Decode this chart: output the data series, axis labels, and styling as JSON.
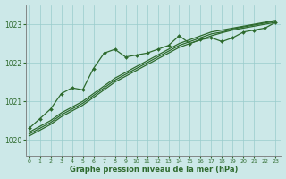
{
  "title": "Graphe pression niveau de la mer (hPa)",
  "bg_color": "#cce8e8",
  "grid_color": "#99cccc",
  "line_color": "#2d6a2d",
  "x_ticks": [
    0,
    1,
    2,
    3,
    4,
    5,
    6,
    7,
    8,
    9,
    10,
    11,
    12,
    13,
    14,
    15,
    16,
    17,
    18,
    19,
    20,
    21,
    22,
    23
  ],
  "y_ticks": [
    1020,
    1021,
    1022,
    1023
  ],
  "ylim": [
    1019.6,
    1023.5
  ],
  "xlim": [
    -0.3,
    23.5
  ],
  "line_marker": [
    1020.3,
    1020.55,
    1020.8,
    1021.2,
    1021.35,
    1021.3,
    1021.85,
    1022.25,
    1022.35,
    1022.15,
    1022.2,
    1022.25,
    1022.35,
    1022.45,
    1022.7,
    1022.5,
    1022.6,
    1022.65,
    1022.55,
    1022.65,
    1022.8,
    1022.85,
    1022.9,
    1023.05
  ],
  "line_smooth1": [
    1020.2,
    1020.35,
    1020.5,
    1020.7,
    1020.85,
    1021.0,
    1021.2,
    1021.4,
    1021.6,
    1021.75,
    1021.9,
    1022.05,
    1022.2,
    1022.35,
    1022.5,
    1022.6,
    1022.7,
    1022.8,
    1022.85,
    1022.9,
    1022.95,
    1023.0,
    1023.05,
    1023.1
  ],
  "line_smooth2": [
    1020.15,
    1020.3,
    1020.45,
    1020.65,
    1020.8,
    1020.95,
    1021.15,
    1021.35,
    1021.55,
    1021.7,
    1021.85,
    1022.0,
    1022.15,
    1022.3,
    1022.45,
    1022.55,
    1022.65,
    1022.75,
    1022.8,
    1022.88,
    1022.93,
    1022.98,
    1023.03,
    1023.08
  ],
  "line_smooth3": [
    1020.1,
    1020.25,
    1020.4,
    1020.6,
    1020.75,
    1020.9,
    1021.1,
    1021.3,
    1021.5,
    1021.65,
    1021.8,
    1021.95,
    1022.1,
    1022.25,
    1022.4,
    1022.5,
    1022.6,
    1022.7,
    1022.78,
    1022.85,
    1022.9,
    1022.95,
    1023.0,
    1023.05
  ]
}
